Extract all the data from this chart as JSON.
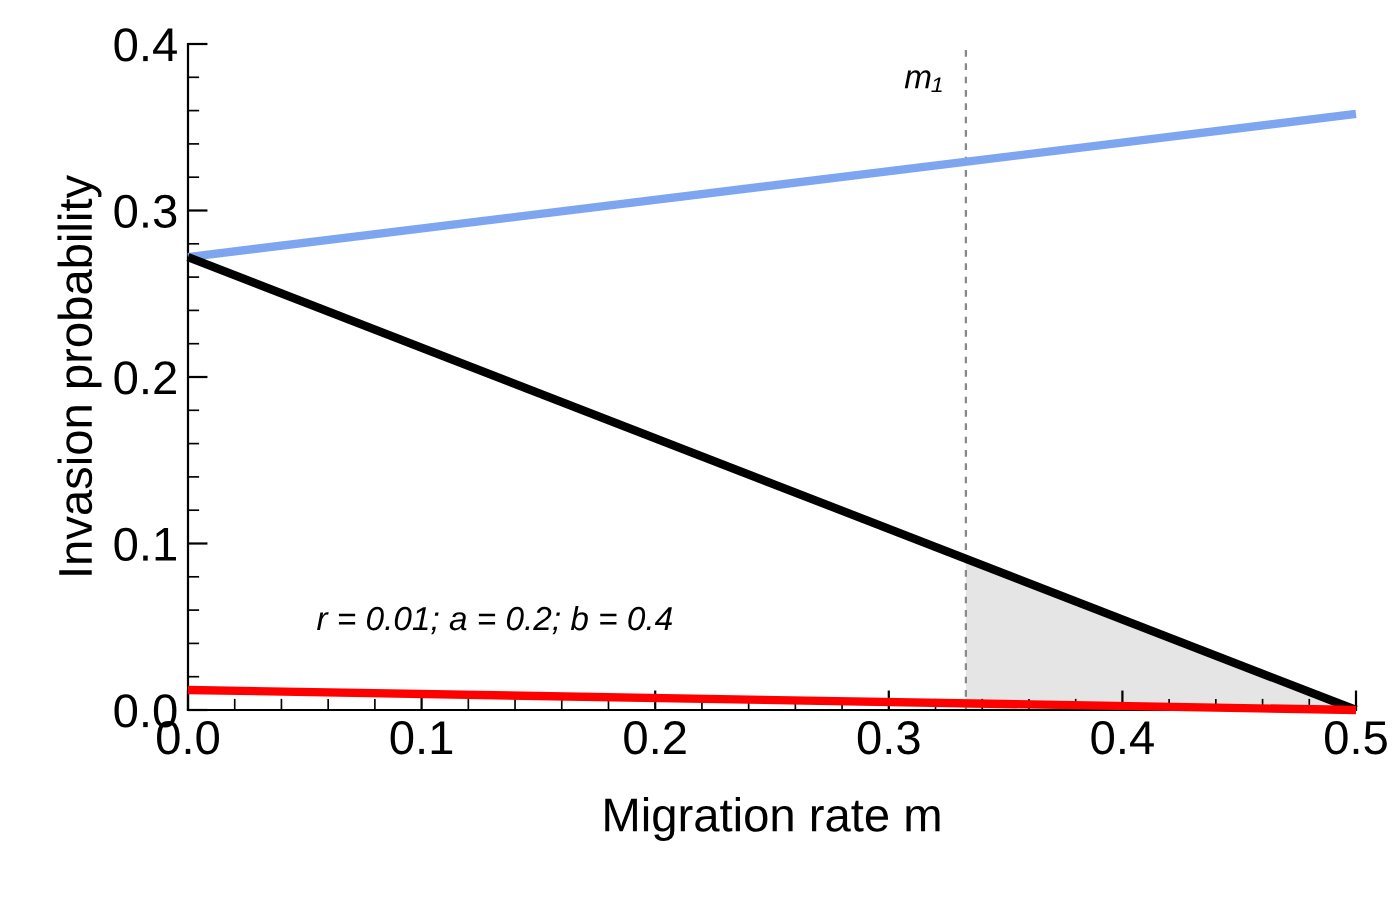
{
  "chart_data": {
    "type": "line",
    "xlabel": "Migration rate m",
    "ylabel": "Invasion probability",
    "xlim": [
      0,
      0.5
    ],
    "ylim": [
      0,
      0.4
    ],
    "xticks": [
      {
        "value": 0,
        "label": "0.0"
      },
      0.1,
      0.2,
      0.3,
      0.4,
      0.5
    ],
    "yticks": [
      {
        "value": 0,
        "label": "0.0"
      },
      0.1,
      0.2,
      0.3,
      0.4
    ],
    "grid": false,
    "legend": false,
    "series": [
      {
        "type": "area",
        "color": "#e5e5e5",
        "x": [
          0.333,
          0.5
        ],
        "values": [
          0.0907,
          0
        ]
      },
      {
        "color": "#7ea6f0",
        "x": [
          0,
          0.5
        ],
        "values": [
          0.272,
          0.358
        ]
      },
      {
        "color": "#000000",
        "x": [
          0,
          0.5
        ],
        "values": [
          0.272,
          0
        ]
      },
      {
        "color": "#ff0000",
        "x": [
          0,
          0.5
        ],
        "values": [
          0.012,
          0
        ]
      }
    ],
    "ref_lines": [
      {
        "axis": "x",
        "value": 0.333,
        "label": "m₁",
        "color": "#888888",
        "line_style": "dashed"
      }
    ],
    "annotations": [
      "r = 0.01; a = 0.2; b = 0.4"
    ]
  }
}
